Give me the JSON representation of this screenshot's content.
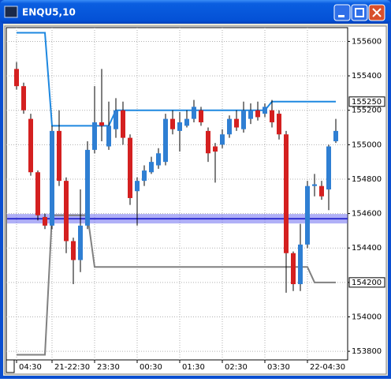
{
  "chart_data": {
    "type": "candlestick",
    "title": "ENQU5,10",
    "categories": [
      "04:30",
      null,
      null,
      null,
      null,
      "21-22:30",
      null,
      null,
      null,
      null,
      null,
      "23:30",
      null,
      null,
      null,
      null,
      null,
      "00:30",
      null,
      null,
      null,
      null,
      null,
      "01:30",
      null,
      null,
      null,
      null,
      null,
      "02:30",
      null,
      null,
      null,
      null,
      null,
      "03:30",
      null,
      null,
      null,
      null,
      null,
      "22-04:30",
      null,
      null,
      null,
      null
    ],
    "open": [
      155440,
      155340,
      155150,
      154840,
      154580,
      154530,
      155080,
      154790,
      154440,
      154330,
      154530,
      154970,
      155130,
      154990,
      155090,
      155200,
      155040,
      154730,
      154790,
      154840,
      154880,
      154900,
      155150,
      155080,
      155110,
      155150,
      155200,
      155080,
      154990,
      155000,
      155060,
      155150,
      155090,
      155150,
      155200,
      155180,
      155200,
      155180,
      155060,
      154370,
      154190,
      154420,
      154760,
      154760,
      154740,
      155020
    ],
    "high": [
      155480,
      155360,
      155180,
      154850,
      154600,
      155110,
      155200,
      154810,
      154460,
      154740,
      155020,
      155340,
      155440,
      155250,
      155270,
      155250,
      155060,
      154810,
      154880,
      154930,
      154980,
      155180,
      155200,
      155190,
      155200,
      155260,
      155220,
      155100,
      155010,
      155090,
      155170,
      155200,
      155250,
      155240,
      155250,
      155240,
      155260,
      155200,
      155080,
      154380,
      154540,
      154790,
      154830,
      154790,
      155000,
      155150
    ],
    "low": [
      155320,
      155180,
      154820,
      154560,
      154510,
      154510,
      154760,
      154370,
      154190,
      154260,
      154510,
      154950,
      155020,
      154970,
      155040,
      155000,
      154650,
      154530,
      154760,
      154830,
      154860,
      154880,
      155060,
      154960,
      155100,
      155130,
      155110,
      154900,
      154780,
      154980,
      155040,
      155080,
      155070,
      155120,
      155140,
      155160,
      155100,
      155030,
      154140,
      154150,
      154150,
      154400,
      154700,
      154680,
      154620,
      155010
    ],
    "close": [
      155340,
      155200,
      154840,
      154590,
      154530,
      155080,
      154790,
      154440,
      154330,
      154530,
      154970,
      155130,
      155110,
      155110,
      155200,
      155040,
      154690,
      154790,
      154850,
      154900,
      154950,
      155150,
      155090,
      155130,
      155150,
      155220,
      155130,
      154950,
      154960,
      155060,
      155150,
      155100,
      155200,
      155200,
      155160,
      155220,
      155130,
      155060,
      154370,
      154190,
      154420,
      154760,
      154770,
      154700,
      154990,
      155080
    ],
    "up_color": "#2f7fd3",
    "down_color": "#d42020",
    "lines": [
      {
        "color": "#1e88e0",
        "values": [
          155650,
          155650,
          155650,
          155650,
          155650,
          155110,
          155110,
          155110,
          155110,
          155110,
          155110,
          155110,
          155110,
          155110,
          155200,
          155200,
          155200,
          155200,
          155200,
          155200,
          155200,
          155200,
          155200,
          155200,
          155200,
          155200,
          155200,
          155200,
          155200,
          155200,
          155200,
          155200,
          155200,
          155200,
          155200,
          155200,
          155250,
          155250,
          155250,
          155250,
          155250,
          155250,
          155250,
          155250,
          155250,
          155250
        ]
      },
      {
        "color": "#808080",
        "values": [
          153780,
          153780,
          153780,
          153780,
          153780,
          154590,
          154590,
          154590,
          154590,
          154590,
          154590,
          154290,
          154290,
          154290,
          154290,
          154290,
          154290,
          154290,
          154290,
          154290,
          154290,
          154290,
          154290,
          154290,
          154290,
          154290,
          154290,
          154290,
          154290,
          154290,
          154290,
          154290,
          154290,
          154290,
          154290,
          154290,
          154290,
          154290,
          154290,
          154290,
          154290,
          154290,
          154200,
          154200,
          154200,
          154200
        ]
      }
    ],
    "level": {
      "value": 154570,
      "color": "#7070f0"
    },
    "price_markers": [
      155250,
      154200
    ],
    "ylim": [
      153750,
      155680
    ],
    "yticks": [
      153800,
      154000,
      154200,
      154400,
      154600,
      154800,
      155000,
      155200,
      155400,
      155600
    ],
    "grid": true
  }
}
